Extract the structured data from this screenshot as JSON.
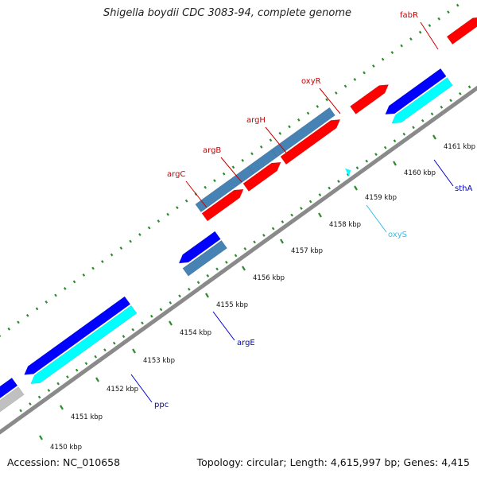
{
  "title": "Shigella boydii CDC 3083-94, complete genome",
  "footer": {
    "accession": "Accession: NC_010658",
    "summary": "Topology: circular; Length: 4,615,997 bp; Genes: 4,415"
  },
  "colors": {
    "backbone": "#8a8a8a",
    "tick": "#2e8b2e",
    "forward_cds": "#ff0000",
    "forward_gene": "#4682b4",
    "reverse_cds": "#0000ff",
    "reverse_gene": "#00ffff",
    "other": "#c0c0c0",
    "forward_label": "#cc0000",
    "reverse_label": "#0000cc",
    "oxyS_label": "#33bbee"
  },
  "scale_labels": [
    "4150 kbp",
    "4151 kbp",
    "4152 kbp",
    "4153 kbp",
    "4154 kbp",
    "4155 kbp",
    "4156 kbp",
    "4157 kbp",
    "4158 kbp",
    "4159 kbp",
    "4160 kbp",
    "4161 kbp"
  ],
  "gene_labels": {
    "fabR": "fabR",
    "oxyR": "oxyR",
    "argH": "argH",
    "argB": "argB",
    "argC": "argC",
    "oxyS": "oxyS",
    "sthA": "sthA",
    "argE": "argE",
    "ppc": "ppc"
  }
}
